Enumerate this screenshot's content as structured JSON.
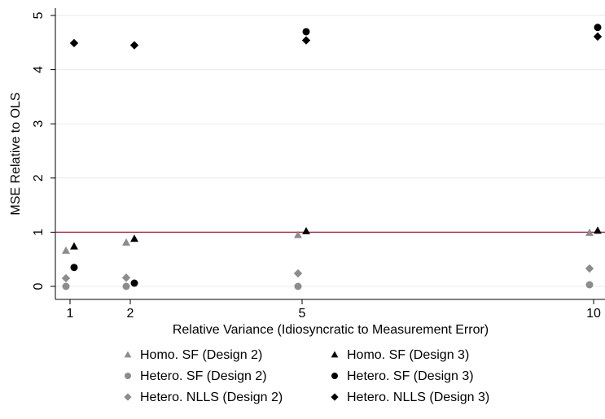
{
  "chart_data": {
    "type": "scatter",
    "title": "",
    "xlabel": "Relative Variance (Idiosyncratic to Measurement Error)",
    "ylabel": "MSE Relative to OLS",
    "x_ticks": [
      "1",
      "2",
      "5",
      "10"
    ],
    "y_ticks": [
      "0",
      "1",
      "2",
      "3",
      "4",
      "5"
    ],
    "xlim": [
      0.8,
      10.2
    ],
    "ylim": [
      -0.2,
      5.0
    ],
    "grid": "horizontal",
    "reference_line": {
      "y": 1,
      "color": "#9b1b3a"
    },
    "legend_position": "bottom",
    "series": [
      {
        "name": "Homo. SF (Design 2)",
        "marker": "triangle",
        "color": "#8c8c8c",
        "dx": -0.08,
        "points": [
          {
            "x": 1,
            "y": 0.66
          },
          {
            "x": 2,
            "y": 0.81
          },
          {
            "x": 5,
            "y": 0.95
          },
          {
            "x": 10,
            "y": 0.99
          }
        ]
      },
      {
        "name": "Homo. SF (Design 3)",
        "marker": "triangle",
        "color": "#000000",
        "dx": 0.08,
        "points": [
          {
            "x": 1,
            "y": 0.74
          },
          {
            "x": 2,
            "y": 0.88
          },
          {
            "x": 5,
            "y": 1.02
          },
          {
            "x": 10,
            "y": 1.03
          }
        ]
      },
      {
        "name": "Hetero. SF (Design 2)",
        "marker": "circle",
        "color": "#8c8c8c",
        "dx": -0.08,
        "points": [
          {
            "x": 1,
            "y": 0.0
          },
          {
            "x": 2,
            "y": 0.0
          },
          {
            "x": 5,
            "y": 0.0
          },
          {
            "x": 10,
            "y": 0.03
          }
        ]
      },
      {
        "name": "Hetero. SF (Design 3)",
        "marker": "circle",
        "color": "#000000",
        "dx": 0.08,
        "points": [
          {
            "x": 1,
            "y": 0.35
          },
          {
            "x": 2,
            "y": 0.06
          },
          {
            "x": 5,
            "y": 4.7
          },
          {
            "x": 10,
            "y": 4.78
          }
        ]
      },
      {
        "name": "Hetero. NLLS (Design 2)",
        "marker": "diamond",
        "color": "#8c8c8c",
        "dx": -0.08,
        "points": [
          {
            "x": 1,
            "y": 0.15
          },
          {
            "x": 2,
            "y": 0.16
          },
          {
            "x": 5,
            "y": 0.24
          },
          {
            "x": 10,
            "y": 0.33
          }
        ]
      },
      {
        "name": "Hetero. NLLS (Design 3)",
        "marker": "diamond",
        "color": "#000000",
        "dx": 0.08,
        "points": [
          {
            "x": 1,
            "y": 4.49
          },
          {
            "x": 2,
            "y": 4.45
          },
          {
            "x": 5,
            "y": 4.54
          },
          {
            "x": 10,
            "y": 4.61
          }
        ]
      }
    ]
  }
}
